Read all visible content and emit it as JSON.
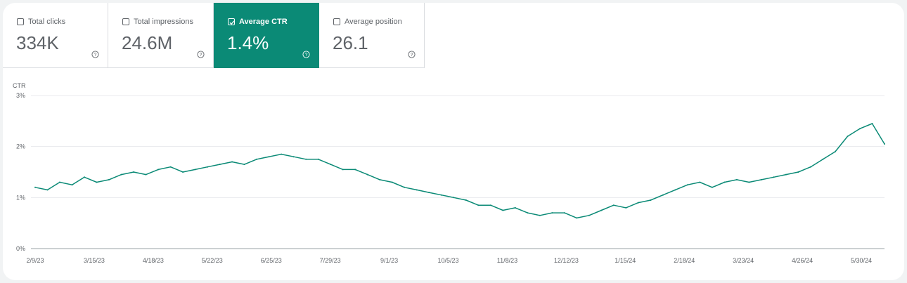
{
  "metrics": [
    {
      "label": "Total clicks",
      "value": "334K",
      "checked": false
    },
    {
      "label": "Total impressions",
      "value": "24.6M",
      "checked": false
    },
    {
      "label": "Average CTR",
      "value": "1.4%",
      "checked": true
    },
    {
      "label": "Average position",
      "value": "26.1",
      "checked": false
    }
  ],
  "colors": {
    "selected_metric": "#0b8a76",
    "line": "#0b8a76",
    "grid": "#e8eaed",
    "axis": "#9aa0a6",
    "text": "#5f6368"
  },
  "icons": {
    "checkbox": "checkbox-icon",
    "help": "help-circle-icon"
  },
  "chart_data": {
    "type": "line",
    "ylabel": "CTR",
    "yticks": [
      "0%",
      "1%",
      "2%",
      "3%"
    ],
    "ylim": [
      0,
      3
    ],
    "grid": true,
    "xtick_labels": [
      "2/9/23",
      "3/15/23",
      "4/18/23",
      "5/22/23",
      "6/25/23",
      "7/29/23",
      "9/1/23",
      "10/5/23",
      "11/8/23",
      "12/12/23",
      "1/15/24",
      "2/18/24",
      "3/23/24",
      "4/26/24",
      "5/30/24"
    ],
    "x_start": "2023-02-09",
    "x_end": "2024-06-06",
    "series": [
      {
        "x": [
          "2023-02-09",
          "2023-02-16",
          "2023-02-23",
          "2023-03-02",
          "2023-03-09",
          "2023-03-16",
          "2023-03-23",
          "2023-03-30",
          "2023-04-06",
          "2023-04-13",
          "2023-04-20",
          "2023-04-27",
          "2023-05-04",
          "2023-05-11",
          "2023-05-18",
          "2023-05-25",
          "2023-06-01",
          "2023-06-08",
          "2023-06-15",
          "2023-06-22",
          "2023-06-29",
          "2023-07-06",
          "2023-07-13",
          "2023-07-20",
          "2023-07-27",
          "2023-08-03",
          "2023-08-10",
          "2023-08-17",
          "2023-08-24",
          "2023-08-31",
          "2023-09-07",
          "2023-09-14",
          "2023-09-21",
          "2023-09-28",
          "2023-10-05",
          "2023-10-12",
          "2023-10-19",
          "2023-10-26",
          "2023-11-02",
          "2023-11-09",
          "2023-11-16",
          "2023-11-23",
          "2023-11-30",
          "2023-12-07",
          "2023-12-14",
          "2023-12-21",
          "2023-12-28",
          "2024-01-04",
          "2024-01-11",
          "2024-01-18",
          "2024-01-25",
          "2024-02-01",
          "2024-02-08",
          "2024-02-15",
          "2024-02-22",
          "2024-02-29",
          "2024-03-07",
          "2024-03-14",
          "2024-03-21",
          "2024-03-28",
          "2024-04-04",
          "2024-04-11",
          "2024-04-18",
          "2024-04-25",
          "2024-05-02",
          "2024-05-09",
          "2024-05-16",
          "2024-05-23",
          "2024-05-30",
          "2024-06-06"
        ],
        "values": [
          1.2,
          1.15,
          1.3,
          1.25,
          1.4,
          1.3,
          1.35,
          1.45,
          1.5,
          1.45,
          1.55,
          1.6,
          1.5,
          1.55,
          1.6,
          1.65,
          1.7,
          1.65,
          1.75,
          1.8,
          1.85,
          1.8,
          1.75,
          1.75,
          1.65,
          1.55,
          1.55,
          1.45,
          1.35,
          1.3,
          1.2,
          1.15,
          1.1,
          1.05,
          1.0,
          0.95,
          0.85,
          0.85,
          0.75,
          0.8,
          0.7,
          0.65,
          0.7,
          0.7,
          0.6,
          0.65,
          0.75,
          0.85,
          0.8,
          0.9,
          0.95,
          1.05,
          1.15,
          1.25,
          1.3,
          1.2,
          1.3,
          1.35,
          1.3,
          1.35,
          1.4,
          1.45,
          1.5,
          1.6,
          1.75,
          1.9,
          2.2,
          2.35,
          2.45,
          2.05
        ]
      }
    ]
  }
}
